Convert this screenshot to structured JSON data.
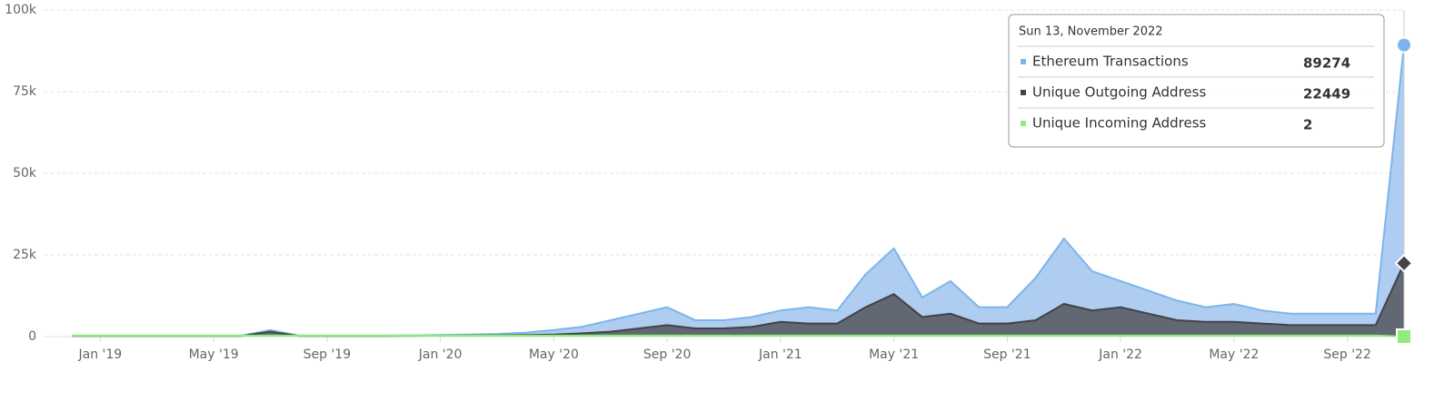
{
  "chart_data": {
    "type": "area",
    "x": [
      "2018-12",
      "2019-01",
      "2019-02",
      "2019-03",
      "2019-04",
      "2019-05",
      "2019-06",
      "2019-07",
      "2019-08",
      "2019-09",
      "2019-10",
      "2019-11",
      "2019-12",
      "2020-01",
      "2020-02",
      "2020-03",
      "2020-04",
      "2020-05",
      "2020-06",
      "2020-07",
      "2020-08",
      "2020-09",
      "2020-10",
      "2020-11",
      "2020-12",
      "2021-01",
      "2021-02",
      "2021-03",
      "2021-04",
      "2021-05",
      "2021-06",
      "2021-07",
      "2021-08",
      "2021-09",
      "2021-10",
      "2021-11",
      "2021-12",
      "2022-01",
      "2022-02",
      "2022-03",
      "2022-04",
      "2022-05",
      "2022-06",
      "2022-07",
      "2022-08",
      "2022-09",
      "2022-10",
      "2022-11"
    ],
    "series": [
      {
        "name": "Ethereum Transactions",
        "color": "#7cb5ec",
        "values": [
          300,
          300,
          300,
          300,
          300,
          300,
          300,
          2000,
          300,
          300,
          300,
          300,
          400,
          500,
          600,
          800,
          1200,
          2000,
          3000,
          5000,
          7000,
          9000,
          5000,
          5000,
          6000,
          8000,
          9000,
          8000,
          19000,
          27000,
          12000,
          17000,
          9000,
          9000,
          18000,
          30000,
          20000,
          17000,
          14000,
          11000,
          9000,
          10000,
          8000,
          7000,
          7000,
          7000,
          7000,
          89274
        ]
      },
      {
        "name": "Unique Outgoing Address",
        "color": "#434348",
        "values": [
          200,
          200,
          200,
          200,
          200,
          200,
          200,
          1500,
          200,
          200,
          200,
          200,
          250,
          300,
          350,
          400,
          500,
          600,
          1000,
          1500,
          2500,
          3500,
          2500,
          2500,
          3000,
          4500,
          4000,
          4000,
          9000,
          13000,
          6000,
          7000,
          4000,
          4000,
          5000,
          10000,
          8000,
          9000,
          7000,
          5000,
          4500,
          4500,
          4000,
          3500,
          3500,
          3500,
          3500,
          22449
        ]
      },
      {
        "name": "Unique Incoming Address",
        "color": "#90ed7d",
        "values": [
          300,
          300,
          300,
          300,
          300,
          300,
          300,
          300,
          300,
          300,
          300,
          300,
          300,
          300,
          300,
          300,
          300,
          300,
          300,
          300,
          300,
          300,
          300,
          300,
          300,
          300,
          300,
          300,
          300,
          300,
          300,
          300,
          300,
          300,
          300,
          300,
          300,
          300,
          300,
          300,
          300,
          300,
          300,
          300,
          300,
          300,
          300,
          2
        ]
      }
    ],
    "xlim": [
      "2018-11",
      "2022-11"
    ],
    "xticks": [
      {
        "value": "2019-01",
        "label": "Jan '19"
      },
      {
        "value": "2019-05",
        "label": "May '19"
      },
      {
        "value": "2019-09",
        "label": "Sep '19"
      },
      {
        "value": "2020-01",
        "label": "Jan '20"
      },
      {
        "value": "2020-05",
        "label": "May '20"
      },
      {
        "value": "2020-09",
        "label": "Sep '20"
      },
      {
        "value": "2021-01",
        "label": "Jan '21"
      },
      {
        "value": "2021-05",
        "label": "May '21"
      },
      {
        "value": "2021-09",
        "label": "Sep '21"
      },
      {
        "value": "2022-01",
        "label": "Jan '22"
      },
      {
        "value": "2022-05",
        "label": "May '22"
      },
      {
        "value": "2022-09",
        "label": "Sep '22"
      }
    ],
    "ylim": [
      0,
      100000
    ],
    "yticks": [
      0,
      {
        "value": 25000,
        "label": "25k"
      },
      {
        "value": 50000,
        "label": "50k"
      },
      {
        "value": 75000,
        "label": "75k"
      },
      {
        "value": 100000,
        "label": "100k"
      }
    ],
    "grid": true,
    "tooltip": {
      "header": "Sun 13, November 2022"
    }
  }
}
